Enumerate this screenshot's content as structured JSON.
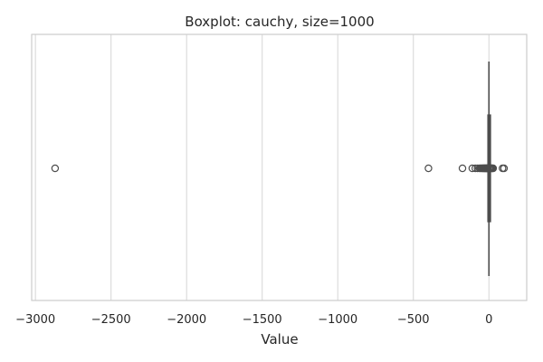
{
  "chart_data": {
    "type": "boxplot",
    "title": "Boxplot: cauchy, size=1000",
    "xlabel": "Value",
    "ylabel": "",
    "orientation": "horizontal",
    "xlim": [
      -3025,
      250
    ],
    "xticks": [
      -3000,
      -2500,
      -2000,
      -1500,
      -1000,
      -500,
      0
    ],
    "xtick_labels": [
      "−3000",
      "−2500",
      "−2000",
      "−1500",
      "−1000",
      "−500",
      "0"
    ],
    "grid": "vertical",
    "box": {
      "q1": -1.2,
      "median": 0.0,
      "q3": 1.2,
      "whisker_low": -3.0,
      "whisker_high": 3.0,
      "color": "#4d4d4d"
    },
    "fliers": [
      -2870,
      -400,
      -175,
      -110,
      -90,
      -75,
      -62,
      -55,
      -48,
      -42,
      -38,
      -34,
      -30,
      -27,
      -24,
      -21,
      -18,
      -15,
      -12,
      -10,
      -8,
      -6,
      -5,
      -4,
      4,
      5,
      6,
      8,
      10,
      13,
      16,
      20,
      24,
      28,
      90,
      100
    ],
    "colors": {
      "box": "#4d4d4d",
      "grid": "#d9d9d9",
      "spine": "#cccccc",
      "flier": "#4d4d4d"
    }
  }
}
